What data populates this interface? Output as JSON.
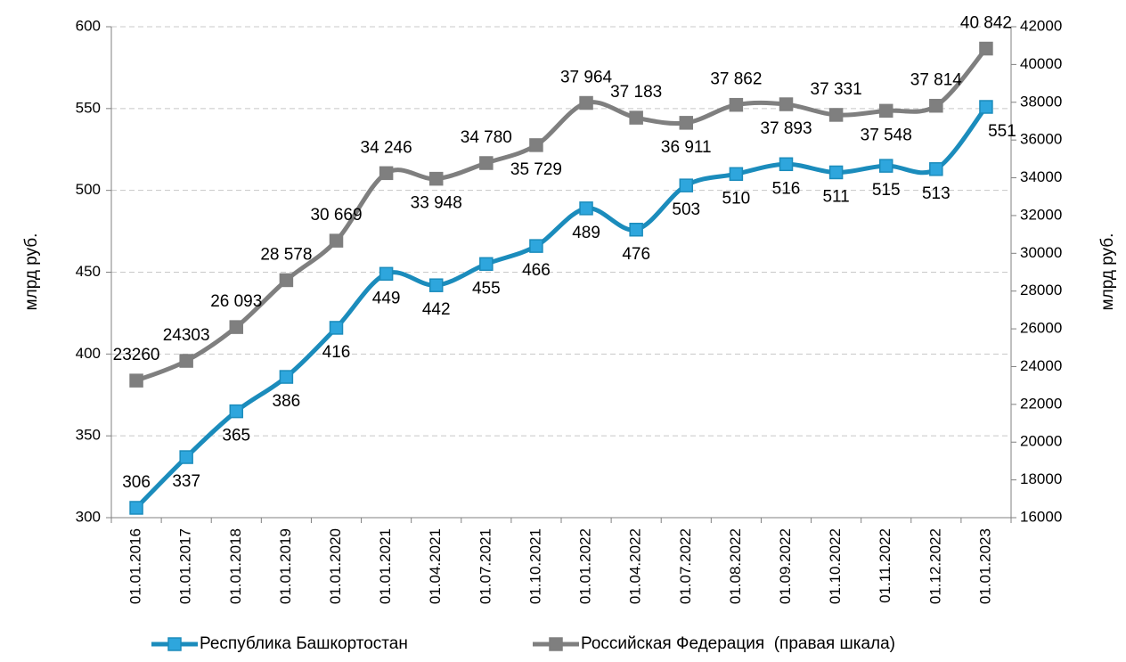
{
  "chart_data": {
    "type": "line",
    "categories": [
      "01.01.2016",
      "01.01.2017",
      "01.01.2018",
      "01.01.2019",
      "01.01.2020",
      "01.01.2021",
      "01.04.2021",
      "01.07.2021",
      "01.10.2021",
      "01.01.2022",
      "01.04.2022",
      "01.07.2022",
      "01.08.2022",
      "01.09.2022",
      "01.10.2022",
      "01.11.2022",
      "01.12.2022",
      "01.01.2023"
    ],
    "series": [
      {
        "name": "Республика Башкортостан",
        "color": "#1b8cbc",
        "marker_color": "#2ea6dd",
        "values": [
          306,
          337,
          365,
          386,
          416,
          449,
          442,
          455,
          466,
          489,
          476,
          503,
          510,
          516,
          511,
          515,
          513,
          551
        ]
      },
      {
        "name": "Российская Федерация  (правая шкала)",
        "color": "#7f7f7f",
        "marker_color": "#7f7f7f",
        "axis": "y2",
        "values": [
          23260,
          24303,
          26093,
          28578,
          30669,
          34246,
          33948,
          34780,
          35729,
          37964,
          37183,
          36911,
          37862,
          37893,
          37331,
          37548,
          37814,
          40842
        ],
        "value_labels": [
          "23260",
          "24303",
          "26 093",
          "28 578",
          "30 669",
          "34 246",
          "33 948",
          "34 780",
          "35 729",
          "37 964",
          "37 183",
          "36 911",
          "37 862",
          "37 893",
          "37 331",
          "37 548",
          "37 814",
          "40 842"
        ]
      }
    ],
    "ylabel": "млрд руб.",
    "y2label": "млрд руб.",
    "ylim": [
      300,
      600
    ],
    "yticks": [
      300,
      350,
      400,
      450,
      500,
      550,
      600
    ],
    "y2lim": [
      16000,
      42000
    ],
    "y2ticks": [
      16000,
      18000,
      20000,
      22000,
      24000,
      26000,
      28000,
      30000,
      32000,
      34000,
      36000,
      38000,
      40000,
      42000
    ],
    "grid": true,
    "legend": "bottom"
  }
}
